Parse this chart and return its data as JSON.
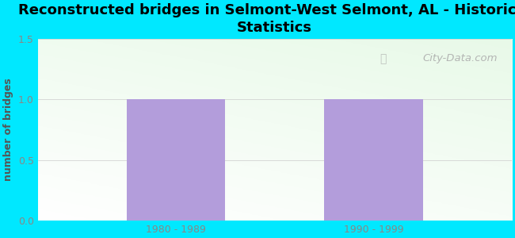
{
  "title": "Reconstructed bridges in Selmont-West Selmont, AL - Historical\nStatistics",
  "categories": [
    "1980 - 1989",
    "1990 - 1999"
  ],
  "values": [
    1,
    1
  ],
  "bar_color": "#b39ddb",
  "bar_width": 0.5,
  "ylim": [
    0,
    1.5
  ],
  "yticks": [
    0,
    0.5,
    1,
    1.5
  ],
  "ylabel": "number of bridges",
  "ylabel_color": "#555555",
  "background_outer": "#00e8ff",
  "watermark": "City-Data.com",
  "title_fontsize": 13,
  "tick_color": "#888888",
  "xlabel_color": "#888888"
}
